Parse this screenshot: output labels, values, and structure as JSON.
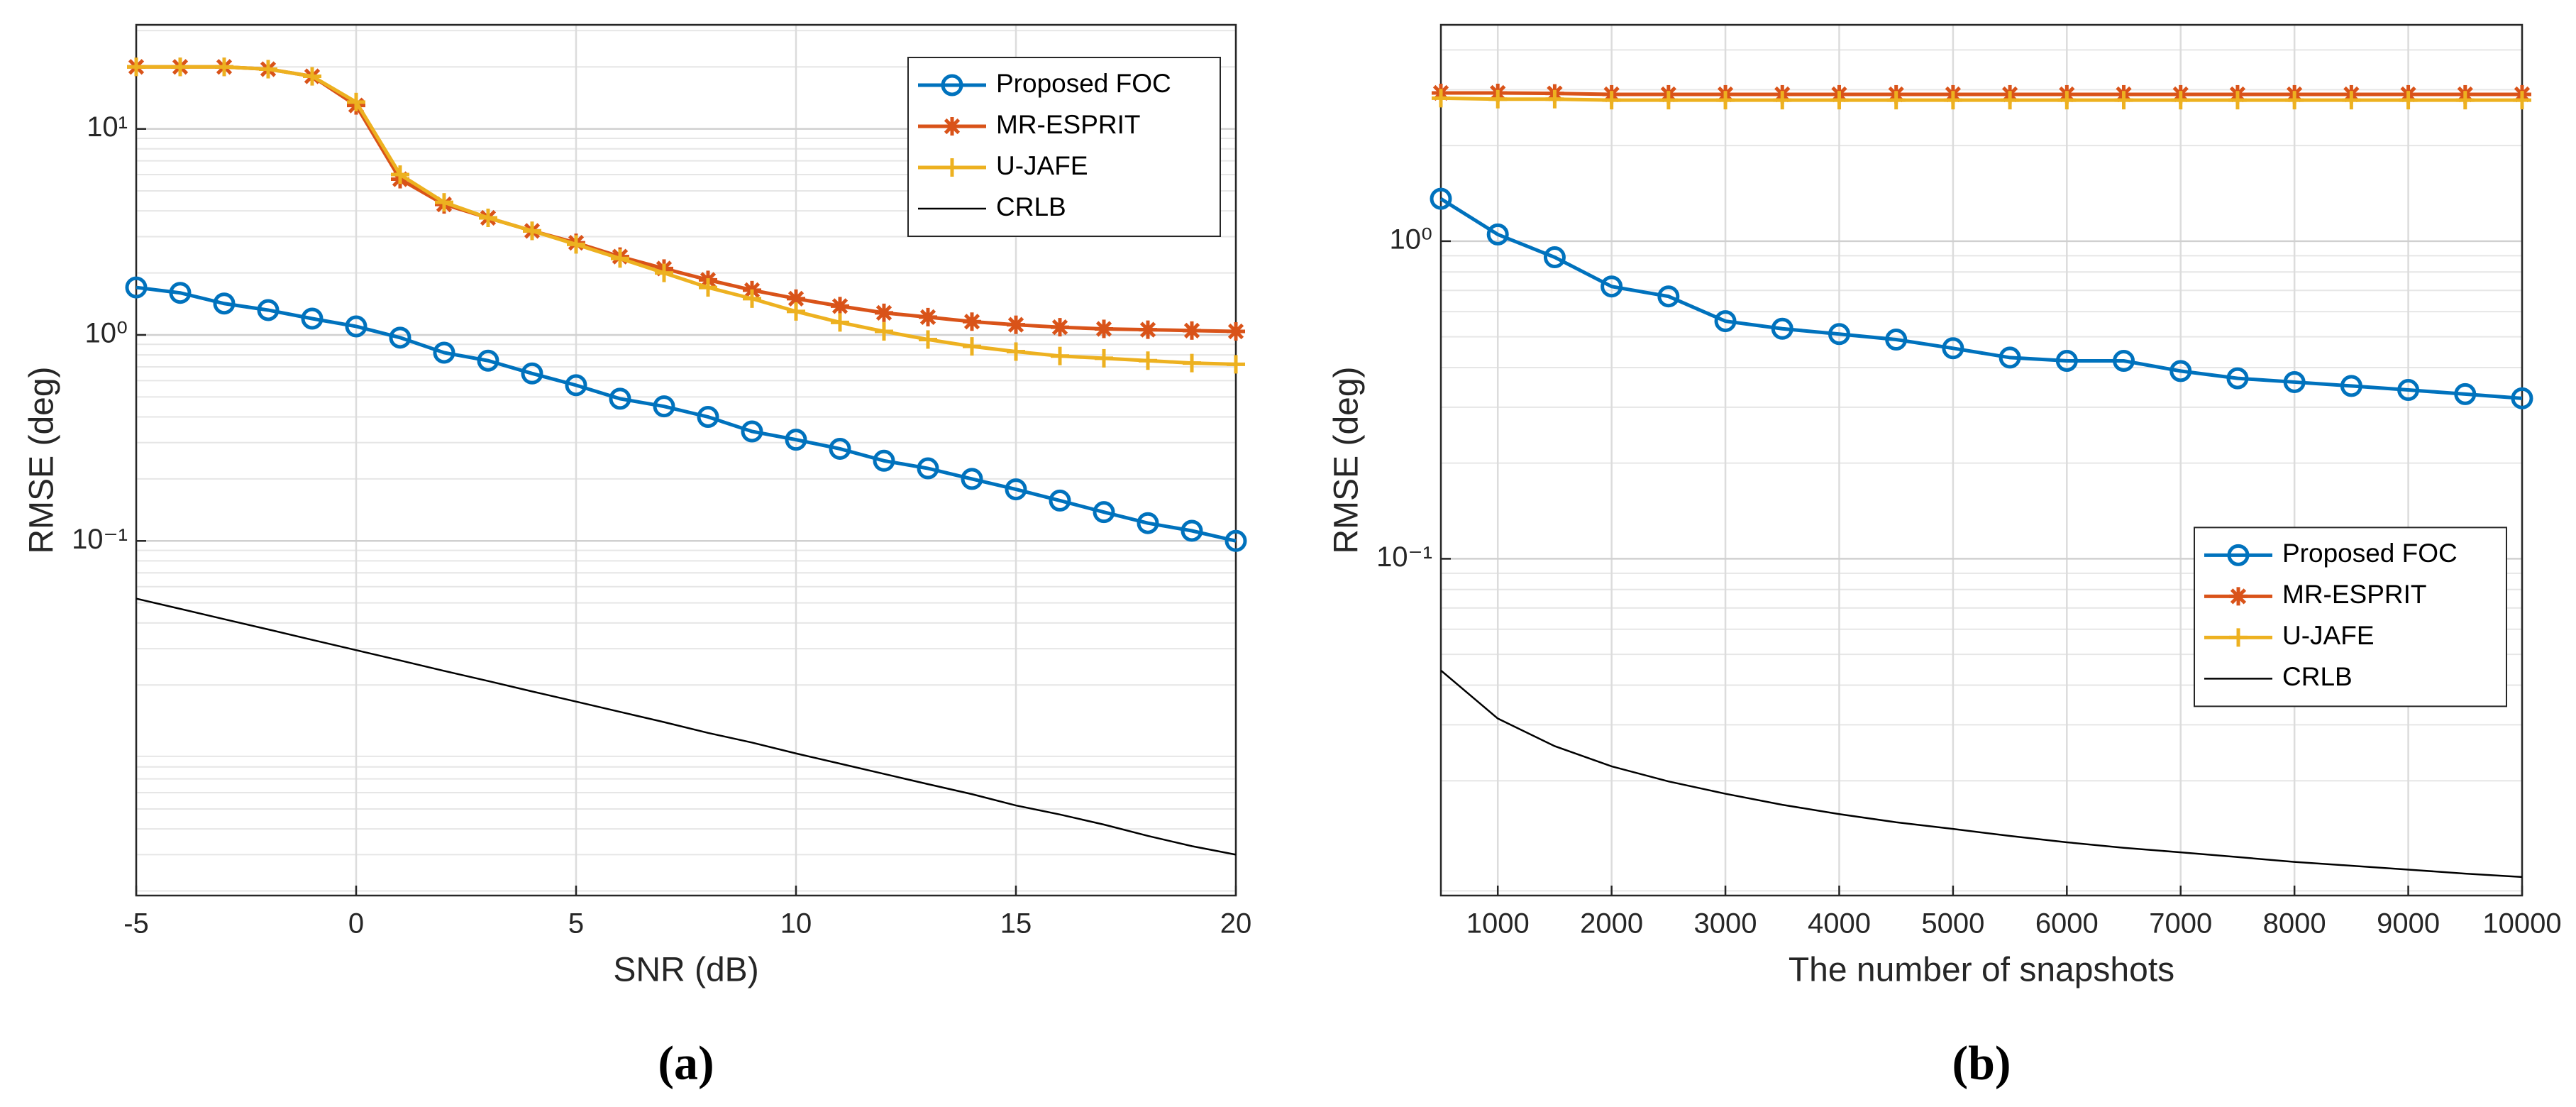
{
  "chart_data": [
    {
      "type": "line",
      "caption": "(a)",
      "xlabel": "SNR (dB)",
      "ylabel": "RMSE (deg)",
      "log_y": true,
      "grid": true,
      "minor_grid": true,
      "legend": "upper right",
      "x": [
        -5,
        -4,
        -3,
        -2,
        -1,
        0,
        1,
        2,
        3,
        4,
        5,
        6,
        7,
        8,
        9,
        10,
        11,
        12,
        13,
        14,
        15,
        16,
        17,
        18,
        19,
        20
      ],
      "xlim": [
        -5,
        20
      ],
      "xticks": [
        -5,
        0,
        5,
        10,
        15,
        20
      ],
      "ylim": [
        0.0019,
        32
      ],
      "yticks": [
        {
          "value": 0.1,
          "label": "10⁻¹"
        },
        {
          "value": 1,
          "label": "10⁰"
        },
        {
          "value": 10,
          "label": "10¹"
        }
      ],
      "series": [
        {
          "name": "Proposed FOC",
          "color": "#0072BD",
          "marker": "circle",
          "values": [
            1.7,
            1.6,
            1.42,
            1.32,
            1.2,
            1.1,
            0.97,
            0.82,
            0.75,
            0.65,
            0.57,
            0.49,
            0.45,
            0.4,
            0.34,
            0.31,
            0.28,
            0.245,
            0.225,
            0.2,
            0.178,
            0.157,
            0.138,
            0.122,
            0.112,
            0.1
          ]
        },
        {
          "name": "MR-ESPRIT",
          "color": "#D95319",
          "marker": "asterisk",
          "values": [
            20,
            20,
            20,
            19.5,
            18,
            13,
            5.7,
            4.3,
            3.7,
            3.2,
            2.8,
            2.4,
            2.1,
            1.85,
            1.65,
            1.5,
            1.38,
            1.28,
            1.22,
            1.16,
            1.12,
            1.09,
            1.07,
            1.06,
            1.05,
            1.04
          ]
        },
        {
          "name": "U-JAFE",
          "color": "#EDB120",
          "marker": "plus",
          "values": [
            20,
            20,
            20,
            19.5,
            18,
            13.5,
            6,
            4.4,
            3.7,
            3.2,
            2.75,
            2.35,
            2.0,
            1.7,
            1.5,
            1.3,
            1.15,
            1.04,
            0.95,
            0.88,
            0.83,
            0.79,
            0.77,
            0.75,
            0.73,
            0.72
          ]
        },
        {
          "name": "CRLB",
          "color": "#000000",
          "marker": "none",
          "values": [
            0.0525,
            0.0468,
            0.0417,
            0.0372,
            0.0331,
            0.0295,
            0.0263,
            0.0234,
            0.0209,
            0.0186,
            0.0166,
            0.0148,
            0.0132,
            0.0117,
            0.0105,
            0.0093,
            0.0083,
            0.0074,
            0.0066,
            0.0059,
            0.0052,
            0.0047,
            0.0042,
            0.0037,
            0.0033,
            0.003
          ]
        }
      ]
    },
    {
      "type": "line",
      "caption": "(b)",
      "xlabel": "The number of snapshots",
      "ylabel": "RMSE (deg)",
      "log_y": true,
      "grid": true,
      "minor_grid": true,
      "legend": "center right",
      "x": [
        500,
        1000,
        1500,
        2000,
        2500,
        3000,
        3500,
        4000,
        4500,
        5000,
        5500,
        6000,
        6500,
        7000,
        7500,
        8000,
        8500,
        9000,
        9500,
        10000
      ],
      "xlim": [
        500,
        10000
      ],
      "xticks": [
        1000,
        2000,
        3000,
        4000,
        5000,
        6000,
        7000,
        8000,
        9000,
        10000
      ],
      "ylim": [
        0.0087,
        4.8
      ],
      "yticks": [
        {
          "value": 0.1,
          "label": "10⁻¹"
        },
        {
          "value": 1,
          "label": "10⁰"
        }
      ],
      "series": [
        {
          "name": "Proposed FOC",
          "color": "#0072BD",
          "marker": "circle",
          "values": [
            1.36,
            1.05,
            0.89,
            0.72,
            0.67,
            0.56,
            0.53,
            0.51,
            0.49,
            0.46,
            0.43,
            0.42,
            0.42,
            0.39,
            0.37,
            0.36,
            0.35,
            0.34,
            0.33,
            0.32
          ]
        },
        {
          "name": "MR-ESPRIT",
          "color": "#D95319",
          "marker": "asterisk",
          "values": [
            2.93,
            2.93,
            2.92,
            2.9,
            2.9,
            2.9,
            2.9,
            2.9,
            2.9,
            2.9,
            2.9,
            2.9,
            2.9,
            2.9,
            2.9,
            2.9,
            2.9,
            2.9,
            2.9,
            2.9
          ]
        },
        {
          "name": "U-JAFE",
          "color": "#EDB120",
          "marker": "plus",
          "values": [
            2.82,
            2.8,
            2.8,
            2.78,
            2.78,
            2.78,
            2.78,
            2.78,
            2.78,
            2.78,
            2.78,
            2.78,
            2.78,
            2.78,
            2.78,
            2.78,
            2.78,
            2.78,
            2.78,
            2.78
          ]
        },
        {
          "name": "CRLB",
          "color": "#000000",
          "marker": "none",
          "values": [
            0.0445,
            0.0314,
            0.0257,
            0.0222,
            0.0199,
            0.0182,
            0.0168,
            0.0157,
            0.0148,
            0.0141,
            0.0134,
            0.0128,
            0.0123,
            0.0119,
            0.0115,
            0.0111,
            0.0108,
            0.0105,
            0.0102,
            0.00995
          ]
        }
      ]
    }
  ]
}
